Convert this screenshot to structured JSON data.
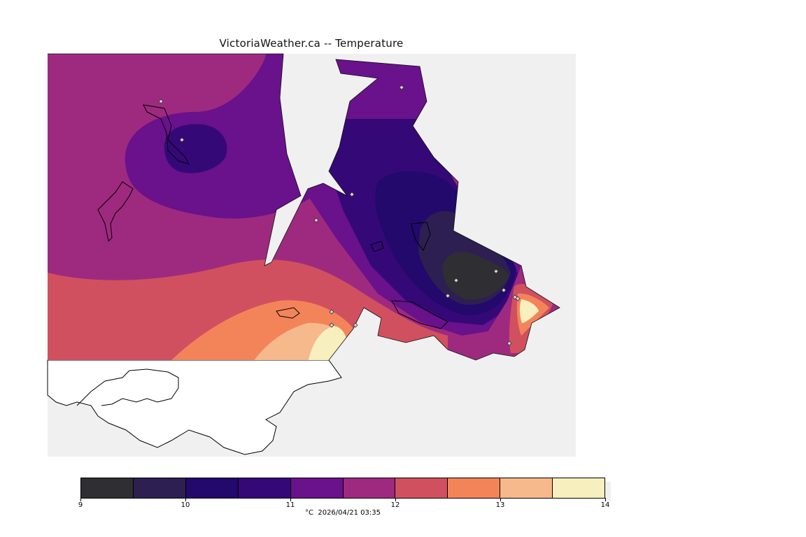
{
  "title": "VictoriaWeather.ca -- Temperature",
  "legend": {
    "unit": "°C",
    "timestamp": "2026/04/21 03:35",
    "colors": [
      "#2f2f33",
      "#2d1f52",
      "#22096b",
      "#350878",
      "#6a118c",
      "#9e2a7f",
      "#d1505f",
      "#f3845a",
      "#f5b98c",
      "#f7efbd"
    ],
    "ticks": [
      "9",
      "10",
      "11",
      "12",
      "13",
      "14"
    ]
  },
  "map": {
    "background": "#f0f0f0",
    "stations": 15
  }
}
